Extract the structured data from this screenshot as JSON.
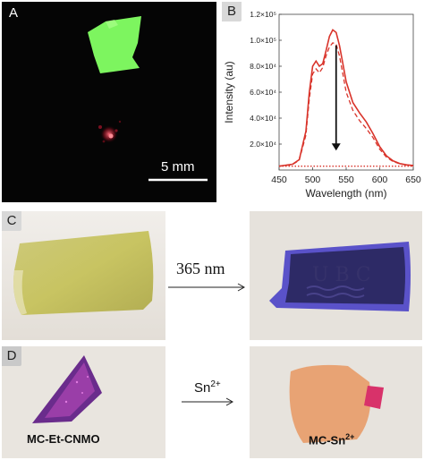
{
  "panels": {
    "a": {
      "label": "A",
      "scalebar_text": "5 mm"
    },
    "b": {
      "label": "B"
    },
    "c": {
      "label": "C",
      "arrow_text": "365 nm"
    },
    "d": {
      "label": "D",
      "arrow_text": "Sn",
      "arrow_sup": "2+",
      "left_sample": "MC-Et-CNMO",
      "right_sample": "MC-Sn",
      "right_sample_sup": "2+"
    }
  },
  "chart_data": {
    "type": "line",
    "xlabel": "Wavelength (nm)",
    "ylabel": "Intensity (au)",
    "xlim": [
      450,
      650
    ],
    "ylim": [
      0,
      120000
    ],
    "xticks": [
      450,
      500,
      550,
      600,
      650
    ],
    "ytick_labels": [
      "2.0×10⁴",
      "4.0×10⁴",
      "6.0×10⁴",
      "8.0×10⁴",
      "1.0×10⁵",
      "1.2×10⁵"
    ],
    "ytick_values": [
      20000,
      40000,
      60000,
      80000,
      100000,
      120000
    ],
    "series": [
      {
        "style": "solid",
        "color": "#d9342b",
        "x": [
          450,
          470,
          480,
          490,
          495,
          500,
          505,
          510,
          515,
          520,
          525,
          530,
          535,
          540,
          545,
          550,
          560,
          570,
          580,
          590,
          600,
          610,
          620,
          630,
          640,
          650
        ],
        "y": [
          3000,
          4500,
          8000,
          30000,
          60000,
          80000,
          84000,
          80000,
          82000,
          92000,
          103000,
          108000,
          106000,
          96000,
          82000,
          68000,
          52000,
          44000,
          37000,
          28000,
          18000,
          11000,
          7000,
          5000,
          4000,
          3500
        ]
      },
      {
        "style": "dashed",
        "color": "#d9342b",
        "x": [
          450,
          470,
          480,
          490,
          495,
          500,
          505,
          510,
          515,
          520,
          525,
          530,
          535,
          540,
          545,
          550,
          560,
          570,
          580,
          590,
          600,
          610,
          620,
          630,
          640,
          650
        ],
        "y": [
          3000,
          4300,
          7500,
          27000,
          55000,
          74000,
          78000,
          75000,
          79000,
          88000,
          95000,
          98000,
          97000,
          88000,
          74000,
          60000,
          46000,
          38000,
          32000,
          25000,
          16000,
          10000,
          6500,
          4800,
          3800,
          3300
        ]
      },
      {
        "style": "dotted",
        "color": "#d9342b",
        "x": [
          450,
          500,
          550,
          600,
          650
        ],
        "y": [
          3000,
          3000,
          3000,
          3000,
          3000
        ]
      }
    ],
    "annotation": {
      "arrow_x": 535,
      "from_y": 96000,
      "to_y": 15000
    }
  }
}
